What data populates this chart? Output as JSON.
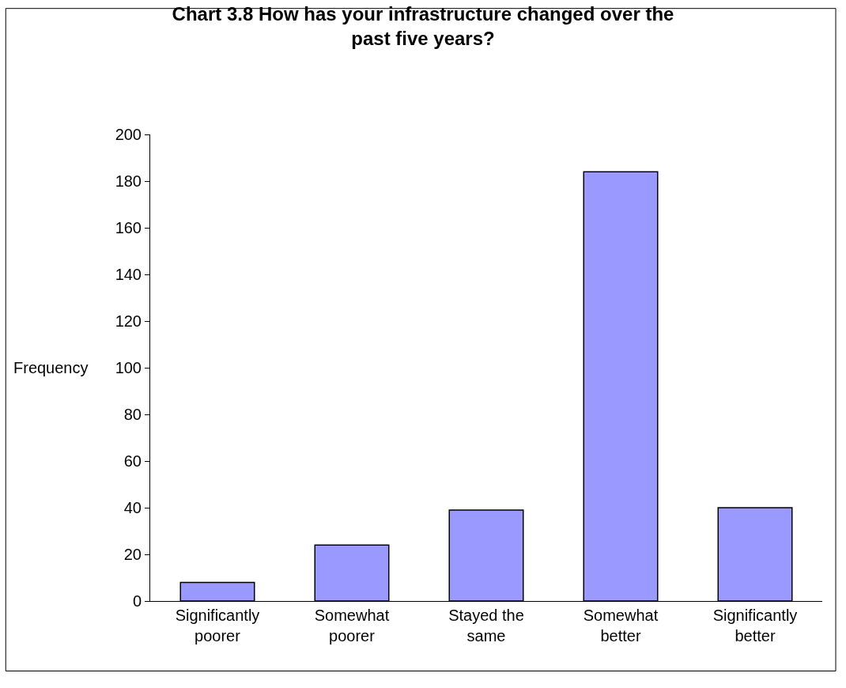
{
  "chart_data": {
    "type": "bar",
    "title": "Chart 3.8 How has your infrastructure changed over the past five years?",
    "categories": [
      "Significantly poorer",
      "Somewhat poorer",
      "Stayed the same",
      "Somewhat better",
      "Significantly better"
    ],
    "values": [
      8,
      24,
      39,
      184,
      40
    ],
    "color": "#9999ff",
    "ylabel": "Frequency",
    "ylim": [
      0,
      200
    ],
    "yticks": [
      0,
      20,
      40,
      60,
      80,
      100,
      120,
      140,
      160,
      180,
      200
    ],
    "legend": false
  }
}
